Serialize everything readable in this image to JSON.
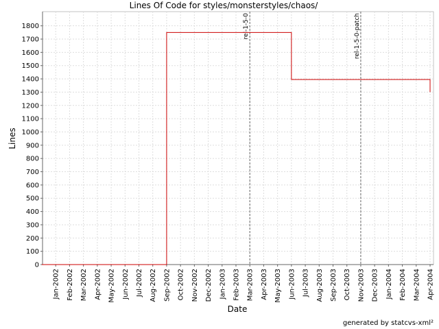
{
  "chart_data": {
    "type": "line",
    "title": "Lines Of Code for styles/monsterstyles/chaos/",
    "x_label": "Date",
    "y_label": "Lines",
    "footer": "generated by statcvs-xml²",
    "x": [
      "2001-12",
      "2002-09",
      "2002-09",
      "2003-06",
      "2003-06",
      "2004-04",
      "2004-04"
    ],
    "series": [
      {
        "name": "Lines",
        "color": "#cc0000",
        "values": [
          0,
          0,
          1750,
          1750,
          1395,
          1395,
          1300
        ]
      }
    ],
    "xlim": [
      "2001-12",
      "2004-04"
    ],
    "xticks": [
      {
        "value": "2002-01",
        "label": "Jan-2002"
      },
      {
        "value": "2002-02",
        "label": "Feb-2002"
      },
      {
        "value": "2002-03",
        "label": "Mar-2002"
      },
      {
        "value": "2002-04",
        "label": "Apr-2002"
      },
      {
        "value": "2002-05",
        "label": "May-2002"
      },
      {
        "value": "2002-06",
        "label": "Jun-2002"
      },
      {
        "value": "2002-07",
        "label": "Jul-2002"
      },
      {
        "value": "2002-08",
        "label": "Aug-2002"
      },
      {
        "value": "2002-09",
        "label": "Sep-2002"
      },
      {
        "value": "2002-10",
        "label": "Oct-2002"
      },
      {
        "value": "2002-11",
        "label": "Nov-2002"
      },
      {
        "value": "2002-12",
        "label": "Dec-2002"
      },
      {
        "value": "2003-01",
        "label": "Jan-2003"
      },
      {
        "value": "2003-02",
        "label": "Feb-2003"
      },
      {
        "value": "2003-03",
        "label": "Mar-2003"
      },
      {
        "value": "2003-04",
        "label": "Apr-2003"
      },
      {
        "value": "2003-05",
        "label": "May-2003"
      },
      {
        "value": "2003-06",
        "label": "Jun-2003"
      },
      {
        "value": "2003-07",
        "label": "Jul-2003"
      },
      {
        "value": "2003-08",
        "label": "Aug-2003"
      },
      {
        "value": "2003-09",
        "label": "Sep-2003"
      },
      {
        "value": "2003-10",
        "label": "Oct-2003"
      },
      {
        "value": "2003-11",
        "label": "Nov-2003"
      },
      {
        "value": "2003-12",
        "label": "Dec-2003"
      },
      {
        "value": "2004-01",
        "label": "Jan-2004"
      },
      {
        "value": "2004-02",
        "label": "Feb-2004"
      },
      {
        "value": "2004-03",
        "label": "Mar-2004"
      },
      {
        "value": "2004-04",
        "label": "Apr-2004"
      }
    ],
    "ylim": [
      0,
      1850
    ],
    "yticks": [
      0,
      100,
      200,
      300,
      400,
      500,
      600,
      700,
      800,
      900,
      1000,
      1100,
      1200,
      1300,
      1400,
      1500,
      1600,
      1700,
      1800
    ],
    "grid": true,
    "markers": [
      {
        "x": "2003-03",
        "label": "rel-1-5-0"
      },
      {
        "x": "2003-11",
        "label": "rel-1-5-0-patch"
      }
    ]
  }
}
